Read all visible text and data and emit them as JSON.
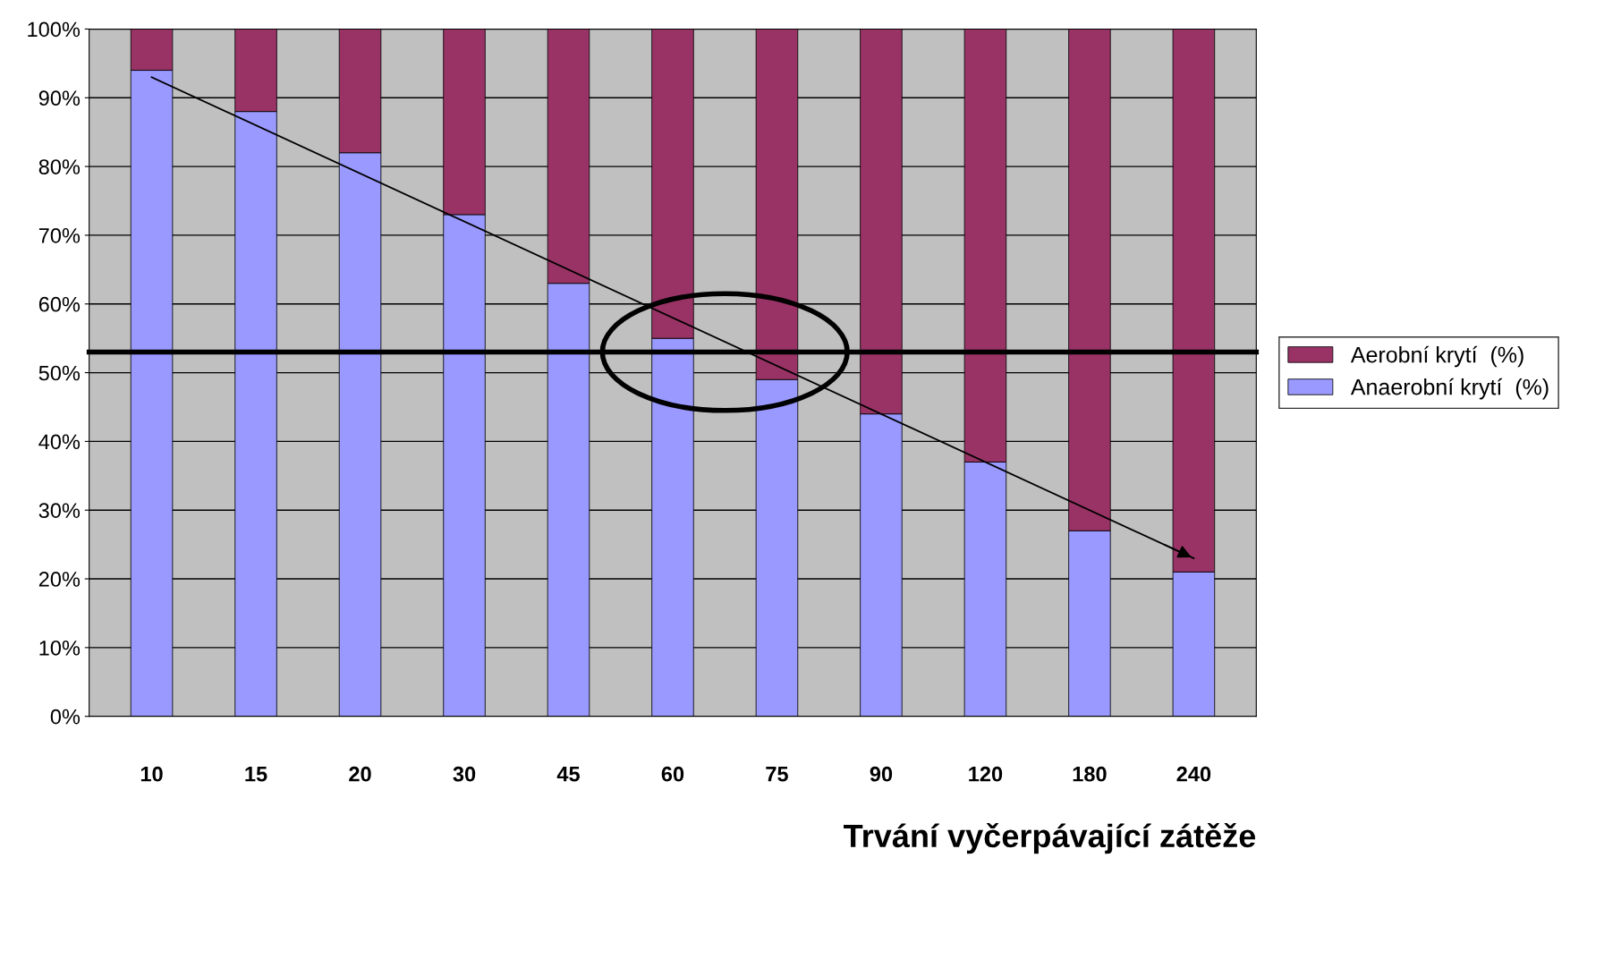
{
  "chart_data": {
    "type": "bar",
    "stacked": true,
    "xlabel": "Trvání vyčerpávající zátěže",
    "categories": [
      "10",
      "15",
      "20",
      "30",
      "45",
      "60",
      "75",
      "90",
      "120",
      "180",
      "240"
    ],
    "series": [
      {
        "name": "Anaerobní krytí  (%)",
        "color": "#9999ff",
        "values": [
          94,
          88,
          82,
          73,
          63,
          55,
          49,
          44,
          37,
          27,
          21
        ]
      },
      {
        "name": "Aerobní krytí  (%)",
        "color": "#993366",
        "values": [
          6,
          12,
          18,
          27,
          37,
          45,
          51,
          56,
          63,
          73,
          79
        ]
      },
      {
        "type": "line",
        "color": "#000000",
        "x": [
          "10",
          "240"
        ],
        "values": [
          93,
          23
        ]
      }
    ],
    "ylim": [
      0,
      100
    ],
    "yticks": [
      {
        "value": 0,
        "label": "0%"
      },
      {
        "value": 10,
        "label": "10%"
      },
      {
        "value": 20,
        "label": "20%"
      },
      {
        "value": 30,
        "label": "30%"
      },
      {
        "value": 40,
        "label": "40%"
      },
      {
        "value": 50,
        "label": "50%"
      },
      {
        "value": 60,
        "label": "60%"
      },
      {
        "value": 70,
        "label": "70%"
      },
      {
        "value": 80,
        "label": "80%"
      },
      {
        "value": 90,
        "label": "90%"
      },
      {
        "value": 100,
        "label": "100%"
      }
    ],
    "ref_lines": [
      {
        "axis": "y",
        "value": 53,
        "color": "#000000",
        "line_style": "solid"
      }
    ],
    "grid": "y",
    "legend": "right"
  }
}
